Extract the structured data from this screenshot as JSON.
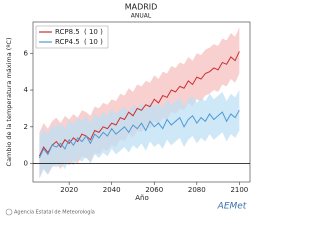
{
  "chart_data": {
    "type": "line",
    "title": "MADRID",
    "subtitle": "ANUAL",
    "xlabel": "Año",
    "ylabel": "Cambio de la temperatura máxima (ºC)",
    "x": [
      2006,
      2008,
      2010,
      2012,
      2014,
      2016,
      2018,
      2020,
      2022,
      2024,
      2026,
      2028,
      2030,
      2032,
      2034,
      2036,
      2038,
      2040,
      2042,
      2044,
      2046,
      2048,
      2050,
      2052,
      2054,
      2056,
      2058,
      2060,
      2062,
      2064,
      2066,
      2068,
      2070,
      2072,
      2074,
      2076,
      2078,
      2080,
      2082,
      2084,
      2086,
      2088,
      2090,
      2092,
      2094,
      2096,
      2098,
      2100
    ],
    "series": [
      {
        "name": "RCP8.5",
        "count_label": "( 10 )",
        "color": "#cc2f2f",
        "band_color": "#f5c0c0",
        "values": [
          0.4,
          0.9,
          0.6,
          1.0,
          1.2,
          0.9,
          1.3,
          1.1,
          1.4,
          1.2,
          1.6,
          1.5,
          1.3,
          1.8,
          1.7,
          2.0,
          1.9,
          2.2,
          2.1,
          2.5,
          2.4,
          2.8,
          2.6,
          3.0,
          2.9,
          3.2,
          3.1,
          3.5,
          3.3,
          3.7,
          3.6,
          4.0,
          3.9,
          4.2,
          4.1,
          4.5,
          4.3,
          4.7,
          4.6,
          4.9,
          5.0,
          5.2,
          5.1,
          5.5,
          5.4,
          5.8,
          5.6,
          6.1
        ],
        "lower": [
          -0.8,
          -0.3,
          -0.6,
          -0.2,
          0.0,
          -0.3,
          0.1,
          -0.1,
          0.2,
          0.0,
          0.4,
          0.3,
          0.1,
          0.6,
          0.5,
          0.8,
          0.7,
          1.0,
          0.9,
          1.3,
          1.2,
          1.6,
          1.4,
          1.8,
          1.7,
          2.0,
          1.9,
          2.3,
          2.1,
          2.5,
          2.4,
          2.8,
          2.7,
          3.0,
          2.9,
          3.3,
          3.1,
          3.5,
          3.4,
          3.7,
          3.8,
          4.0,
          3.9,
          4.3,
          4.2,
          4.6,
          4.4,
          4.9
        ],
        "upper": [
          1.7,
          2.2,
          1.9,
          2.3,
          2.5,
          2.2,
          2.6,
          2.4,
          2.7,
          2.5,
          2.9,
          2.8,
          2.6,
          3.1,
          3.0,
          3.3,
          3.2,
          3.5,
          3.4,
          3.8,
          3.7,
          4.1,
          3.9,
          4.3,
          4.2,
          4.5,
          4.4,
          4.8,
          4.6,
          5.0,
          4.9,
          5.3,
          5.2,
          5.5,
          5.4,
          5.8,
          5.6,
          6.0,
          5.9,
          6.2,
          6.3,
          6.5,
          6.4,
          6.8,
          6.7,
          7.1,
          6.9,
          7.4
        ]
      },
      {
        "name": "RCP4.5",
        "count_label": "( 10 )",
        "color": "#4f9ad6",
        "band_color": "#bfe0f4",
        "values": [
          0.3,
          0.8,
          0.5,
          1.0,
          0.9,
          1.1,
          0.8,
          1.3,
          1.0,
          1.4,
          1.2,
          1.5,
          1.1,
          1.6,
          1.4,
          1.7,
          1.5,
          1.9,
          1.6,
          1.8,
          2.0,
          1.7,
          2.1,
          1.9,
          2.2,
          1.8,
          2.3,
          2.0,
          2.2,
          1.9,
          2.4,
          2.1,
          2.3,
          2.5,
          2.0,
          2.4,
          2.6,
          2.2,
          2.5,
          2.3,
          2.7,
          2.4,
          2.6,
          2.8,
          2.3,
          2.7,
          2.5,
          2.9
        ],
        "lower": [
          -0.8,
          -0.3,
          -0.6,
          -0.1,
          -0.2,
          0.0,
          -0.3,
          0.2,
          -0.1,
          0.3,
          0.1,
          0.4,
          0.0,
          0.5,
          0.3,
          0.6,
          0.4,
          0.8,
          0.5,
          0.7,
          0.9,
          0.6,
          1.0,
          0.8,
          1.1,
          0.7,
          1.2,
          0.9,
          1.1,
          0.8,
          1.3,
          1.0,
          1.2,
          1.4,
          0.9,
          1.3,
          1.5,
          1.1,
          1.4,
          1.2,
          1.6,
          1.3,
          1.5,
          1.7,
          1.2,
          1.6,
          1.4,
          1.8
        ],
        "upper": [
          1.4,
          1.9,
          1.6,
          2.1,
          2.0,
          2.2,
          1.9,
          2.4,
          2.1,
          2.5,
          2.3,
          2.6,
          2.2,
          2.7,
          2.5,
          2.8,
          2.6,
          3.0,
          2.7,
          2.9,
          3.1,
          2.8,
          3.2,
          3.0,
          3.3,
          2.9,
          3.4,
          3.1,
          3.3,
          3.0,
          3.5,
          3.2,
          3.4,
          3.6,
          3.1,
          3.5,
          3.7,
          3.3,
          3.6,
          3.4,
          3.8,
          3.5,
          3.7,
          3.9,
          3.4,
          3.8,
          3.6,
          4.0
        ]
      }
    ],
    "xlim": [
      2003,
      2105
    ],
    "ylim": [
      -1,
      7.7
    ],
    "xticks": [
      2020,
      2040,
      2060,
      2080,
      2100
    ],
    "yticks": [
      0,
      2,
      4,
      6
    ],
    "zero_line": 0,
    "legend": "upper left",
    "footer": {
      "source": "Agencia Estatal de Meteorología",
      "logo": "AEMet"
    }
  }
}
